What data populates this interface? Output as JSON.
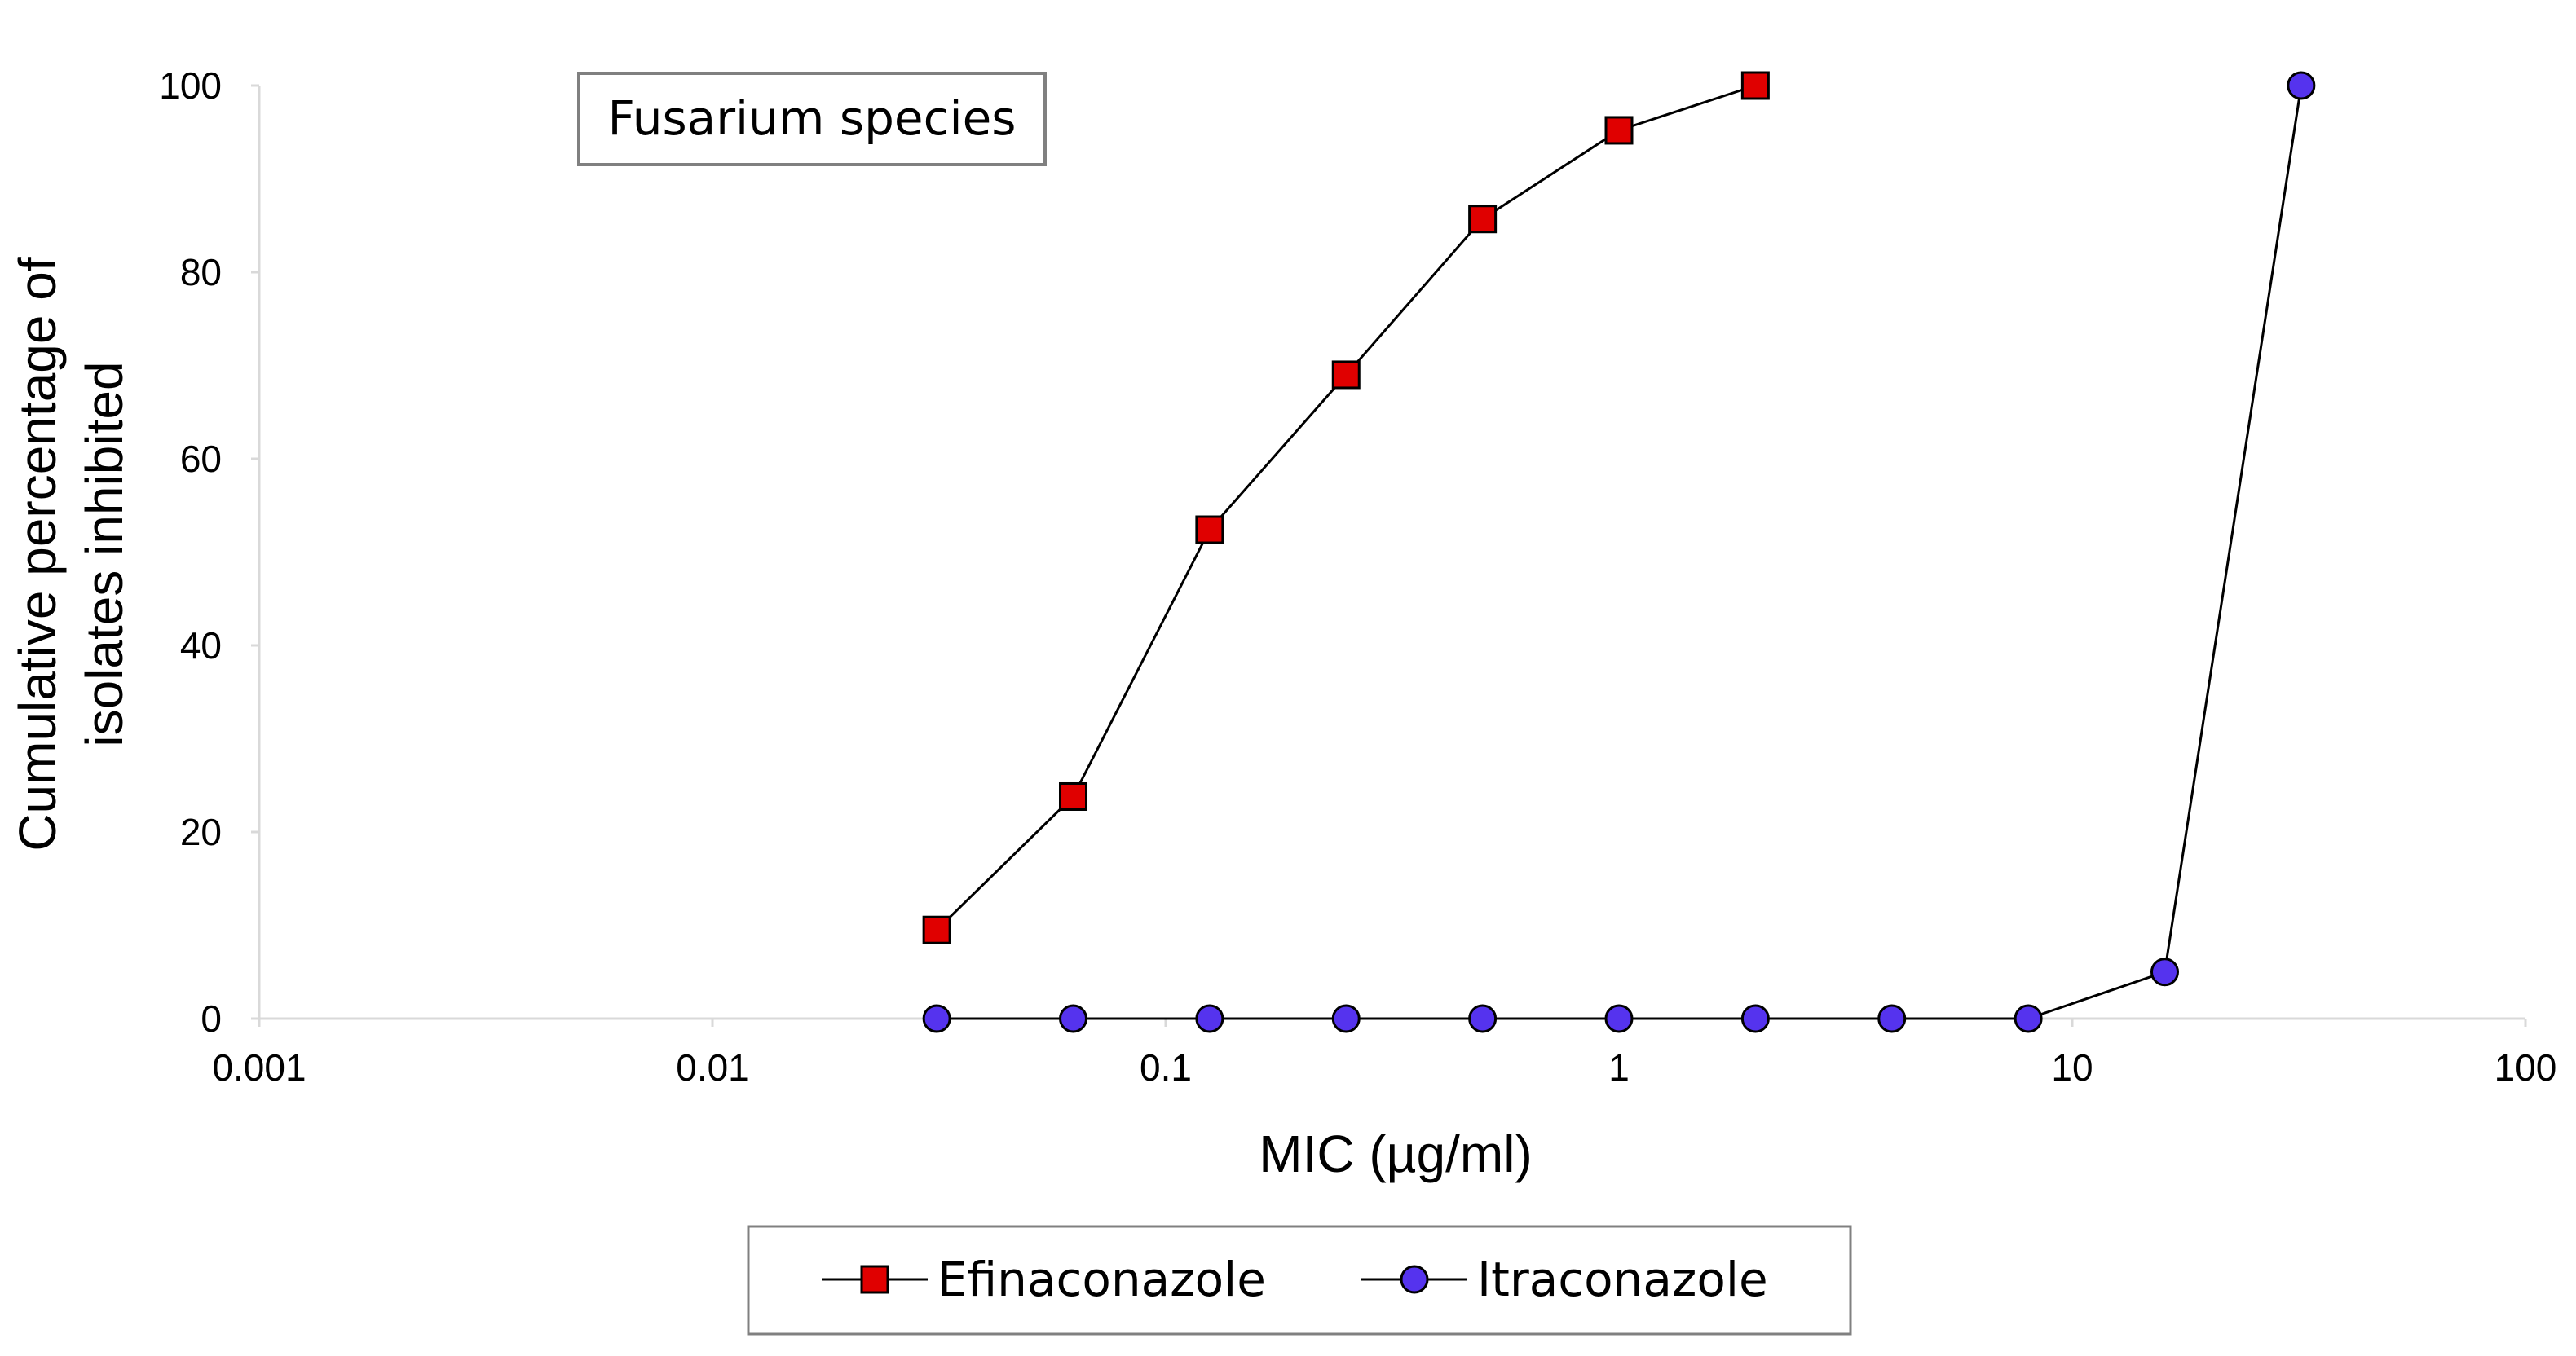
{
  "chart_data": {
    "type": "line",
    "title": "Fusarium species",
    "xlabel": "MIC (µg/ml)",
    "ylabel_lines": [
      "Cumulative percentage of",
      "isolates inhibited"
    ],
    "x_scale": "log",
    "xlim": [
      0.001,
      100
    ],
    "ylim": [
      0,
      100
    ],
    "x_ticks": [
      0.001,
      0.01,
      0.1,
      1,
      10,
      100
    ],
    "x_tick_labels": [
      "0.001",
      "0.01",
      "0.1",
      "1",
      "10",
      "100"
    ],
    "y_ticks": [
      0,
      20,
      40,
      60,
      80,
      100
    ],
    "y_tick_labels": [
      "0",
      "20",
      "40",
      "60",
      "80",
      "100"
    ],
    "legend_position": "bottom",
    "series": [
      {
        "name": "Efinaconazole",
        "marker": "square",
        "color": "#e00000",
        "x": [
          0.03125,
          0.0625,
          0.125,
          0.25,
          0.5,
          1,
          2
        ],
        "values": [
          9.5,
          23.8,
          52.4,
          69,
          85.7,
          95.2,
          100
        ]
      },
      {
        "name": "Itraconazole",
        "marker": "circle",
        "color": "#5533ee",
        "x": [
          0.03125,
          0.0625,
          0.125,
          0.25,
          0.5,
          1,
          2,
          4,
          8,
          16,
          32
        ],
        "values": [
          0,
          0,
          0,
          0,
          0,
          0,
          0,
          0,
          0,
          5,
          100
        ]
      }
    ]
  }
}
